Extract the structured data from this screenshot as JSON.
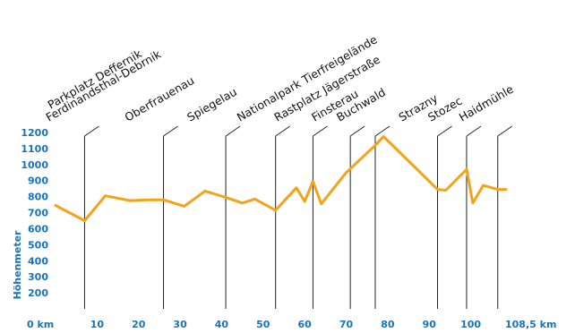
{
  "chart_data": {
    "type": "line",
    "title": "",
    "xlabel": "",
    "ylabel": "Höhenmeter",
    "x_unit_label": "km",
    "x_tick_labels": [
      "0 km",
      "10",
      "20",
      "30",
      "40",
      "50",
      "60",
      "70",
      "80",
      "90",
      "100",
      "108,5 km"
    ],
    "x_tick_values": [
      0,
      10,
      20,
      30,
      40,
      50,
      60,
      70,
      80,
      90,
      100,
      108.5
    ],
    "y_ticks": [
      200,
      300,
      400,
      500,
      600,
      700,
      800,
      900,
      1000,
      1100,
      1200
    ],
    "xlim": [
      0,
      108.5
    ],
    "ylim": [
      100,
      1200
    ],
    "grid": false,
    "line_color": "#f2a31b",
    "series": [
      {
        "values_x": [
          0,
          7,
          12,
          18,
          22,
          26,
          31,
          36,
          41,
          45,
          48,
          53,
          58,
          60,
          62,
          64,
          70,
          77,
          79,
          92,
          94,
          99,
          100.5,
          103,
          106.5,
          108.5
        ],
        "values_y": [
          745,
          650,
          805,
          775,
          780,
          780,
          740,
          835,
          795,
          760,
          785,
          715,
          855,
          770,
          895,
          755,
          950,
          1120,
          1175,
          845,
          840,
          970,
          760,
          870,
          845,
          845
        ]
      }
    ],
    "waypoints": [
      {
        "name": "Ferdinandsthal-Debrnik",
        "km": 7
      },
      {
        "name": "Parkplatz Deffernik",
        "km": 7
      },
      {
        "name": "Oberfrauenau",
        "km": 26
      },
      {
        "name": "Spiegelau",
        "km": 41
      },
      {
        "name": "Nationalpark Tierfreigelände",
        "km": 53
      },
      {
        "name": "Rastplatz Jägerstraße",
        "km": 62
      },
      {
        "name": "Finsterau",
        "km": 71
      },
      {
        "name": "Buchwald",
        "km": 77
      },
      {
        "name": "Strazny",
        "km": 92
      },
      {
        "name": "Stozec",
        "km": 99
      },
      {
        "name": "Haidmühle",
        "km": 106.5
      }
    ]
  }
}
